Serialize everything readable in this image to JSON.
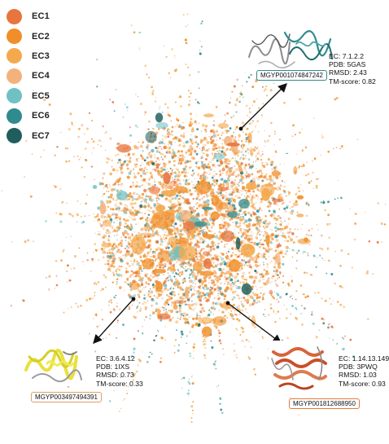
{
  "legend": [
    {
      "label": "EC1",
      "color": "#e8753e"
    },
    {
      "label": "EC2",
      "color": "#f08f2a"
    },
    {
      "label": "EC3",
      "color": "#f5a94f"
    },
    {
      "label": "EC4",
      "color": "#f3b27b"
    },
    {
      "label": "EC5",
      "color": "#6fc1c3"
    },
    {
      "label": "EC6",
      "color": "#2f8b8e"
    },
    {
      "label": "EC7",
      "color": "#1f5e5c"
    }
  ],
  "callouts": {
    "top_right": {
      "id": "MGYP001074847242",
      "ec": "EC: 7.1.2.2",
      "pdb": "PDB: 5GAS",
      "rmsd": "RMSD: 2.43",
      "tm": "TM-score: 0.82",
      "border_color": "#2f8b8e"
    },
    "bottom_left": {
      "id": "MGYP003497494391",
      "ec": "EC: 3.6.4.12",
      "pdb": "PDB: 1IXS",
      "rmsd": "RMSD: 0.73",
      "tm": "TM-score: 0.33",
      "border_color": "#e0a060"
    },
    "bottom_right": {
      "id": "MGYP001812688950",
      "ec": "EC: 1.14.13.149",
      "pdb": "PDB: 3PWQ",
      "rmsd": "RMSD: 1.03",
      "tm": "TM-score: 0.93",
      "border_color": "#e07a3c"
    }
  },
  "colors": {
    "helix_yellow": "#e8e13a",
    "helix_red": "#d9633a",
    "structure_grey": "#9a9a9a",
    "structure_teal": "#2f8b8e",
    "arrow": "#111111"
  }
}
